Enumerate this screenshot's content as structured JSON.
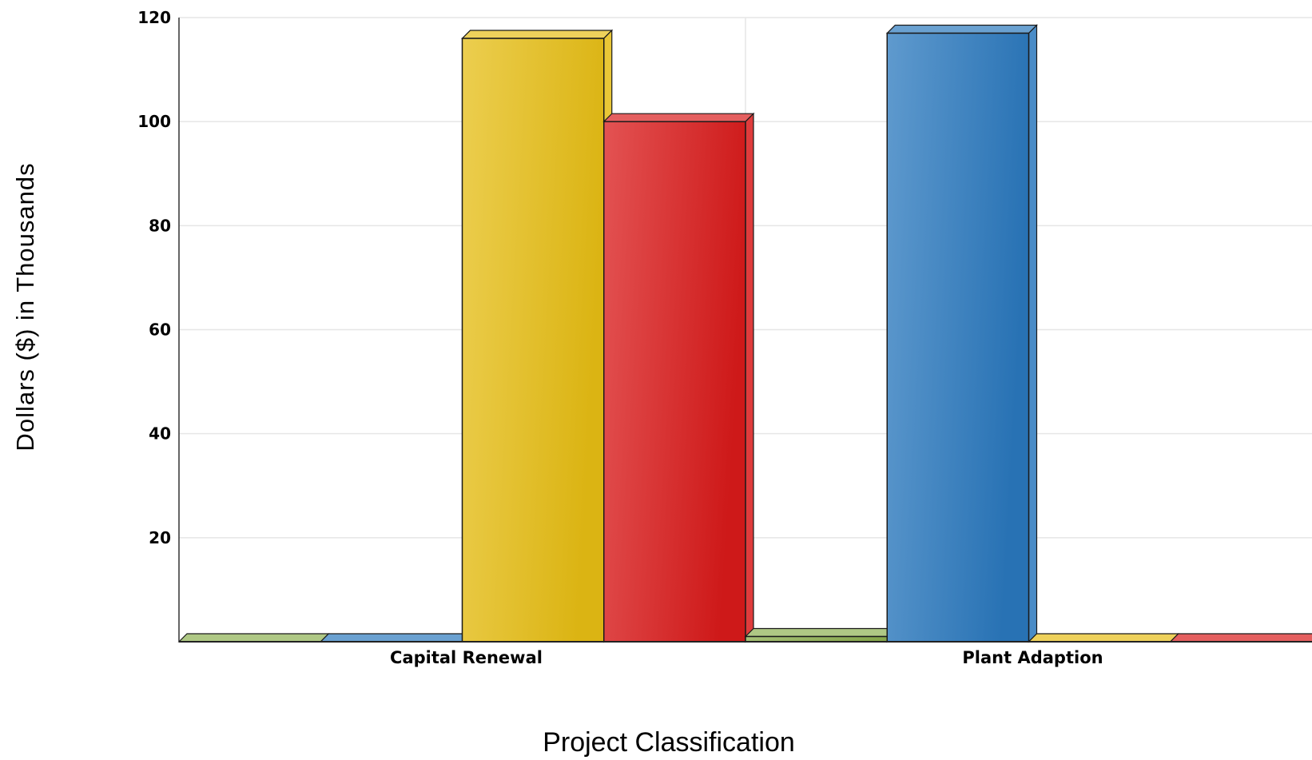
{
  "chart_data": {
    "type": "bar",
    "title": "",
    "xlabel": "Project Classification",
    "ylabel": "Dollars ($) in Thousands",
    "categories": [
      "Capital Renewal",
      "Plant Adaption"
    ],
    "series": [
      {
        "color": "#8db050",
        "values": [
          0,
          1
        ]
      },
      {
        "color": "#2a78bd",
        "values": [
          0,
          117
        ]
      },
      {
        "color": "#e6bd14",
        "values": [
          116,
          0
        ]
      },
      {
        "color": "#d91a1a",
        "values": [
          100,
          0
        ]
      }
    ],
    "ylim": [
      0,
      120
    ],
    "yticks": [
      20,
      40,
      60,
      80,
      100,
      120
    ],
    "grid": true,
    "legend": "none"
  }
}
